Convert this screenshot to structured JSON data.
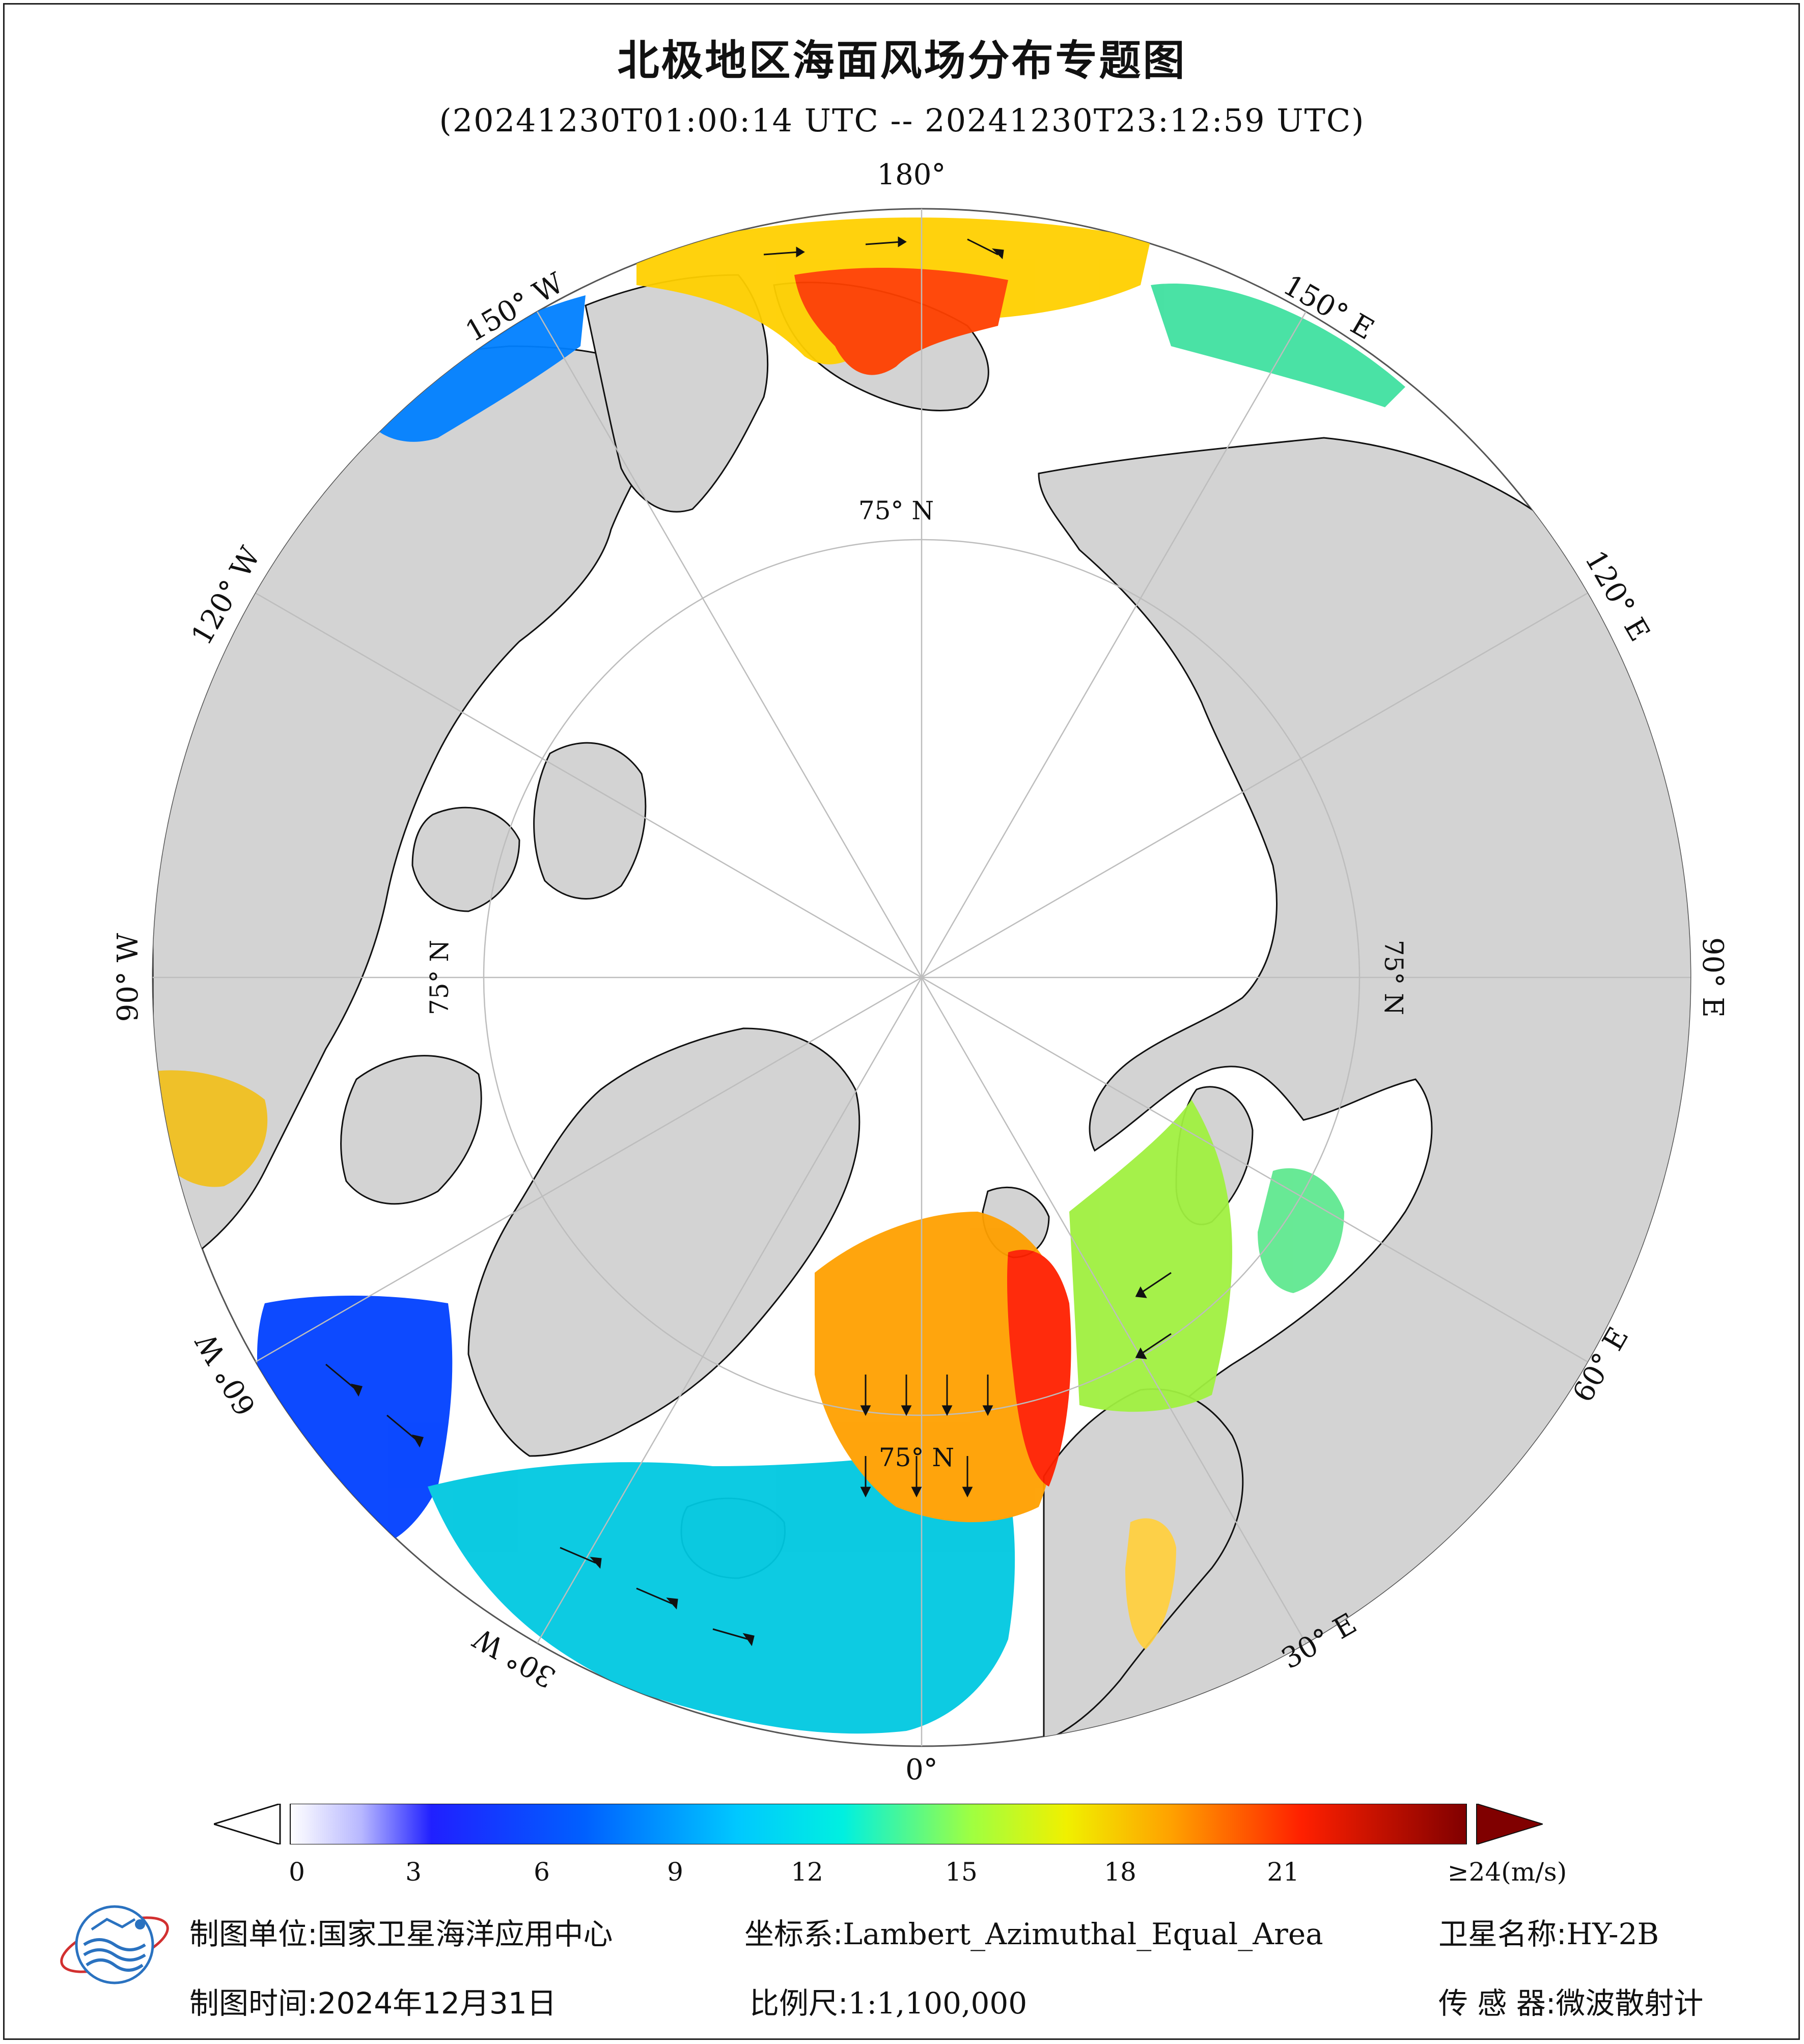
{
  "title": "北极地区海面风场分布专题图",
  "subtitle": "(20241230T01:00:14 UTC -- 20241230T23:12:59 UTC)",
  "map": {
    "longitude_labels": [
      {
        "label": "180°",
        "lon": 180
      },
      {
        "label": "150° E",
        "lon": 150
      },
      {
        "label": "120° E",
        "lon": 120
      },
      {
        "label": "90° E",
        "lon": 90
      },
      {
        "label": "60° E",
        "lon": 60
      },
      {
        "label": "30° E",
        "lon": 30
      },
      {
        "label": "0°",
        "lon": 0
      },
      {
        "label": "30° W",
        "lon": -30
      },
      {
        "label": "60° W",
        "lon": -60
      },
      {
        "label": "90° W",
        "lon": -90
      },
      {
        "label": "120° W",
        "lon": -120
      },
      {
        "label": "150° W",
        "lon": -150
      }
    ],
    "latitude_label": "75° N",
    "colors": {
      "land": "#d3d3d3",
      "ice_ocean": "#ffffff",
      "coastline": "#111111",
      "graticule": "#bdbdbd"
    }
  },
  "colorbar": {
    "unit": "(m/s)",
    "ticks": [
      {
        "label": "0",
        "value": 0
      },
      {
        "label": "3",
        "value": 3
      },
      {
        "label": "6",
        "value": 6
      },
      {
        "label": "9",
        "value": 9
      },
      {
        "label": "12",
        "value": 12
      },
      {
        "label": "15",
        "value": 15
      },
      {
        "label": "18",
        "value": 18
      },
      {
        "label": "21",
        "value": 21
      },
      {
        "label": "≥24",
        "value": 24
      }
    ],
    "range": [
      0,
      24
    ],
    "palette": [
      "#ffffff",
      "#c8c8ff",
      "#8080ff",
      "#2020ff",
      "#0040ff",
      "#0090ff",
      "#00d0ff",
      "#00f0e0",
      "#40f8a0",
      "#a0ff40",
      "#f0f000",
      "#ffc000",
      "#ff8000",
      "#ff2000",
      "#d00000",
      "#800000"
    ]
  },
  "footer": {
    "unit_label": "制图单位:",
    "unit_value": "国家卫星海洋应用中心",
    "coord_label": "坐标系:",
    "coord_value": "Lambert_Azimuthal_Equal_Area",
    "satellite_label": "卫星名称:",
    "satellite_value": "HY-2B",
    "time_label": "制图时间:",
    "time_value": "2024年12月31日",
    "scale_label": "比例尺:",
    "scale_value": "1:1,100,000",
    "sensor_label": "传 感 器:",
    "sensor_value": "微波散射计"
  }
}
